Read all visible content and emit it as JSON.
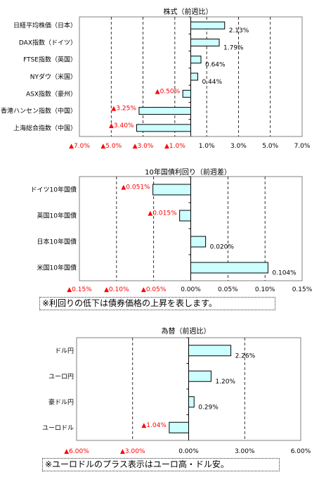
{
  "colors": {
    "bar_fill": "#ccffff",
    "bar_stroke": "#000000",
    "negative_text": "#ff0000",
    "positive_text": "#000000",
    "grid": "#000000",
    "frame": "#808080"
  },
  "chart_data": [
    {
      "type": "bar",
      "orientation": "horizontal",
      "title": "株式（前週比）",
      "categories": [
        "日経平均株価（日本）",
        "DAX指数（ドイツ）",
        "FTSE指数（英国）",
        "NYダウ（米国）",
        "ASX指数（豪州）",
        "香港ハンセン指数（中国）",
        "上海総合指数（中国）"
      ],
      "values": [
        2.13,
        1.79,
        0.64,
        0.44,
        -0.5,
        -3.25,
        -3.4
      ],
      "value_labels": [
        "2.13%",
        "1.79%",
        "0.64%",
        "0.44%",
        "▲0.50%",
        "▲3.25%",
        "▲3.40%"
      ],
      "xlim": [
        -7.0,
        7.0
      ],
      "ticks": [
        -7,
        -5,
        -3,
        -1,
        1,
        3,
        5,
        7
      ],
      "tick_labels": [
        "▲7.0%",
        "▲5.0%",
        "▲3.0%",
        "▲1.0%",
        "1.0%",
        "3.0%",
        "5.0%",
        "7.0%"
      ],
      "grid": "vertical dashed"
    },
    {
      "type": "bar",
      "orientation": "horizontal",
      "title": "10年国債利回り（前週差）",
      "categories": [
        "ドイツ10年国債",
        "英国10年国債",
        "日本10年国債",
        "米国10年国債"
      ],
      "values": [
        -0.051,
        -0.015,
        0.02,
        0.104
      ],
      "value_labels": [
        "▲0.051%",
        "▲0.015%",
        "0.020%",
        "0.104%"
      ],
      "xlim": [
        -0.15,
        0.15
      ],
      "ticks": [
        -0.15,
        -0.1,
        -0.05,
        0,
        0.05,
        0.1,
        0.15
      ],
      "tick_labels": [
        "▲0.15%",
        "▲0.10%",
        "▲0.05%",
        "0.00%",
        "0.05%",
        "0.10%",
        "0.15%"
      ],
      "grid": "vertical dashed"
    },
    {
      "type": "bar",
      "orientation": "horizontal",
      "title": "為替（前週比）",
      "categories": [
        "ドル円",
        "ユーロ円",
        "豪ドル円",
        "ユーロドル"
      ],
      "values": [
        2.26,
        1.2,
        0.29,
        -1.04
      ],
      "value_labels": [
        "2.26%",
        "1.20%",
        "0.29%",
        "▲1.04%"
      ],
      "xlim": [
        -6.0,
        6.0
      ],
      "ticks": [
        -6,
        -3,
        0,
        3,
        6
      ],
      "tick_labels": [
        "▲6.00%",
        "▲3.00%",
        "0.00%",
        "3.00%",
        "6.00%"
      ],
      "grid": "vertical dashed"
    }
  ],
  "notes": {
    "bond_note": "※利回りの低下は債券価格の上昇を表します。",
    "fx_note": "※ユーロドルのプラス表示はユーロ高・ドル安。"
  }
}
